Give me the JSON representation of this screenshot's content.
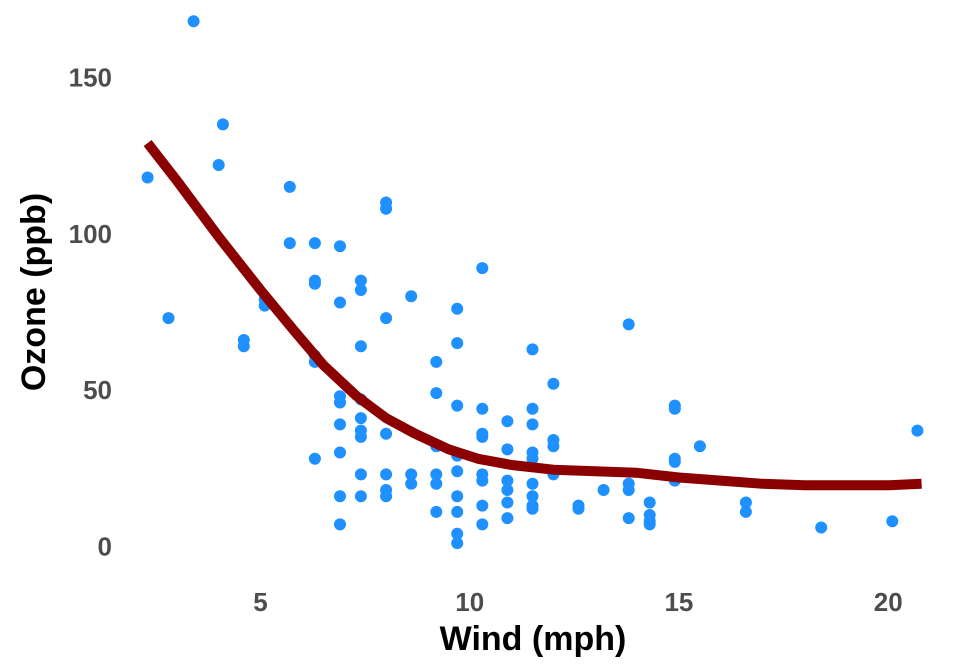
{
  "chart_data": {
    "type": "scatter",
    "title": "",
    "xlabel": "Wind (mph)",
    "ylabel": "Ozone (ppb)",
    "xlim": [
      2.0,
      21.0
    ],
    "ylim": [
      -6,
      170
    ],
    "x_ticks": [
      5,
      10,
      15,
      20
    ],
    "y_ticks": [
      0,
      50,
      100,
      150
    ],
    "grid": false,
    "legend": "none",
    "colors": {
      "points": "#1E90FF",
      "smooth": "#8B0000",
      "tick_text": "#4D4D4D",
      "axis_text": "#000000"
    },
    "series": [
      {
        "type": "scatter",
        "points": [
          [
            3.4,
            168
          ],
          [
            2.3,
            118
          ],
          [
            2.8,
            73
          ],
          [
            4.0,
            122
          ],
          [
            4.1,
            135
          ],
          [
            4.6,
            66
          ],
          [
            4.6,
            64
          ],
          [
            5.1,
            79
          ],
          [
            5.1,
            77
          ],
          [
            5.7,
            115
          ],
          [
            5.7,
            97
          ],
          [
            6.3,
            97
          ],
          [
            6.3,
            85
          ],
          [
            6.3,
            84
          ],
          [
            6.3,
            61
          ],
          [
            6.3,
            59
          ],
          [
            6.3,
            28
          ],
          [
            6.9,
            96
          ],
          [
            6.9,
            78
          ],
          [
            6.9,
            48
          ],
          [
            6.9,
            46
          ],
          [
            6.9,
            39
          ],
          [
            6.9,
            30
          ],
          [
            6.9,
            16
          ],
          [
            6.9,
            7
          ],
          [
            7.4,
            85
          ],
          [
            7.4,
            82
          ],
          [
            7.4,
            64
          ],
          [
            7.4,
            47
          ],
          [
            7.4,
            41
          ],
          [
            7.4,
            37
          ],
          [
            7.4,
            35
          ],
          [
            7.4,
            23
          ],
          [
            7.4,
            16
          ],
          [
            8.0,
            110
          ],
          [
            8.0,
            108
          ],
          [
            8.0,
            73
          ],
          [
            8.0,
            36
          ],
          [
            8.0,
            23
          ],
          [
            8.0,
            18
          ],
          [
            8.0,
            16
          ],
          [
            8.6,
            80
          ],
          [
            8.6,
            23
          ],
          [
            8.6,
            20
          ],
          [
            9.2,
            59
          ],
          [
            9.2,
            49
          ],
          [
            9.2,
            32
          ],
          [
            9.2,
            23
          ],
          [
            9.2,
            20
          ],
          [
            9.2,
            11
          ],
          [
            9.7,
            76
          ],
          [
            9.7,
            65
          ],
          [
            9.7,
            45
          ],
          [
            9.7,
            29
          ],
          [
            9.7,
            24
          ],
          [
            9.7,
            16
          ],
          [
            9.7,
            11
          ],
          [
            9.7,
            4
          ],
          [
            9.7,
            1
          ],
          [
            10.3,
            89
          ],
          [
            10.3,
            44
          ],
          [
            10.3,
            36
          ],
          [
            10.3,
            35
          ],
          [
            10.3,
            23
          ],
          [
            10.3,
            21
          ],
          [
            10.3,
            13
          ],
          [
            10.3,
            7
          ],
          [
            10.9,
            40
          ],
          [
            10.9,
            31
          ],
          [
            10.9,
            21
          ],
          [
            10.9,
            18
          ],
          [
            10.9,
            14
          ],
          [
            10.9,
            9
          ],
          [
            11.5,
            63
          ],
          [
            11.5,
            44
          ],
          [
            11.5,
            39
          ],
          [
            11.5,
            30
          ],
          [
            11.5,
            28
          ],
          [
            11.5,
            20
          ],
          [
            11.5,
            16
          ],
          [
            11.5,
            13
          ],
          [
            11.5,
            12
          ],
          [
            12.0,
            52
          ],
          [
            12.0,
            34
          ],
          [
            12.0,
            32
          ],
          [
            12.0,
            23
          ],
          [
            12.6,
            13
          ],
          [
            12.6,
            12
          ],
          [
            13.2,
            18
          ],
          [
            13.8,
            71
          ],
          [
            13.8,
            20
          ],
          [
            13.8,
            18
          ],
          [
            13.8,
            9
          ],
          [
            14.3,
            14
          ],
          [
            14.3,
            10
          ],
          [
            14.3,
            8
          ],
          [
            14.3,
            7
          ],
          [
            14.9,
            45
          ],
          [
            14.9,
            44
          ],
          [
            14.9,
            28
          ],
          [
            14.9,
            27
          ],
          [
            14.9,
            21
          ],
          [
            15.5,
            32
          ],
          [
            16.6,
            14
          ],
          [
            16.6,
            11
          ],
          [
            18.4,
            6
          ],
          [
            20.1,
            8
          ],
          [
            20.7,
            37
          ]
        ]
      },
      {
        "type": "line",
        "points": [
          [
            2.3,
            129
          ],
          [
            3.0,
            117
          ],
          [
            4.0,
            99
          ],
          [
            5.0,
            82
          ],
          [
            5.8,
            69
          ],
          [
            6.5,
            58
          ],
          [
            7.3,
            48
          ],
          [
            8.0,
            41
          ],
          [
            8.7,
            36
          ],
          [
            9.5,
            31
          ],
          [
            10.2,
            28
          ],
          [
            11.0,
            26
          ],
          [
            12.0,
            24.5
          ],
          [
            13.0,
            24
          ],
          [
            14.0,
            23.5
          ],
          [
            15.0,
            22
          ],
          [
            16.0,
            21
          ],
          [
            17.0,
            20
          ],
          [
            18.0,
            19.5
          ],
          [
            19.0,
            19.5
          ],
          [
            20.0,
            19.5
          ],
          [
            20.8,
            20
          ]
        ]
      }
    ]
  }
}
